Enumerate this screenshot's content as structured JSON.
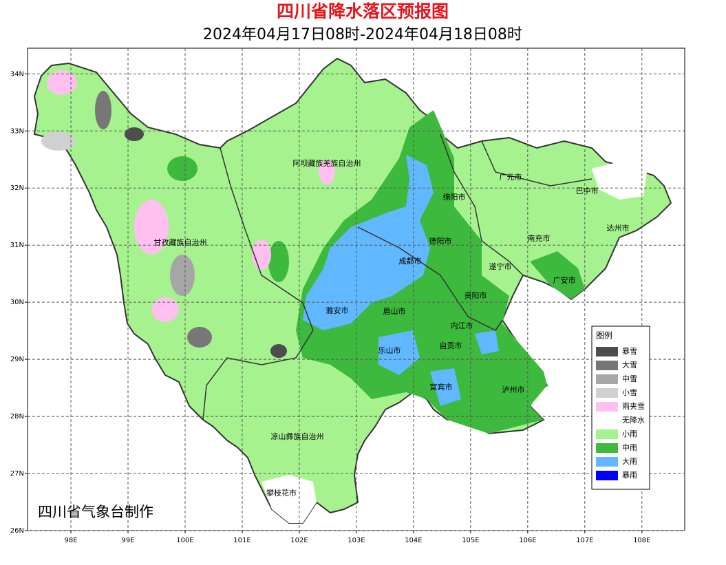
{
  "header": {
    "title": "四川省降水落区预报图",
    "subtitle": "2024年04月17日08时-2024年04月18日08时"
  },
  "map": {
    "xlim": [
      97.24,
      108.75
    ],
    "ylim": [
      26,
      34.45
    ],
    "xticks": [
      {
        "value": 98,
        "label": "98E"
      },
      {
        "value": 99,
        "label": "99E"
      },
      {
        "value": 100,
        "label": "100E"
      },
      {
        "value": 101,
        "label": "101E"
      },
      {
        "value": 102,
        "label": "102E"
      },
      {
        "value": 103,
        "label": "103E"
      },
      {
        "value": 104,
        "label": "104E"
      },
      {
        "value": 105,
        "label": "105E"
      },
      {
        "value": 106,
        "label": "106E"
      },
      {
        "value": 107,
        "label": "107E"
      },
      {
        "value": 108,
        "label": "108E"
      }
    ],
    "yticks": [
      {
        "value": 26,
        "label": "26N"
      },
      {
        "value": 27,
        "label": "27N"
      },
      {
        "value": 28,
        "label": "28N"
      },
      {
        "value": 29,
        "label": "29N"
      },
      {
        "value": 30,
        "label": "30N"
      },
      {
        "value": 31,
        "label": "31N"
      },
      {
        "value": 32,
        "label": "32N"
      },
      {
        "value": 33,
        "label": "33N"
      },
      {
        "value": 34,
        "label": "34N"
      }
    ],
    "grid": true,
    "labels": [
      "阿坝藏族羌族自治州",
      "广元市",
      "巴中市",
      "绵阳市",
      "甘孜藏族自治州",
      "德阳市",
      "南充市",
      "达州市",
      "成都市",
      "遂宁市",
      "广安市",
      "资阳市",
      "雅安市",
      "眉山市",
      "内江市",
      "自贡市",
      "乐山市",
      "宜宾市",
      "泸州市",
      "凉山彝族自治州",
      "攀枝花市"
    ],
    "credit": "四川省气象台制作"
  },
  "legend": {
    "title": "图例",
    "items": [
      {
        "name": "暴雪",
        "color": "#4d4d4d"
      },
      {
        "name": "大雪",
        "color": "#777777"
      },
      {
        "name": "中雪",
        "color": "#a6a6a6"
      },
      {
        "name": "小雪",
        "color": "#d0d0d0"
      },
      {
        "name": "雨夹雪",
        "color": "#ffc0f0"
      },
      {
        "name": "无降水",
        "color": "#ffffff"
      },
      {
        "name": "小雨",
        "color": "#a6f28f"
      },
      {
        "name": "中雨",
        "color": "#3dba3d"
      },
      {
        "name": "大雨",
        "color": "#61b8ff"
      },
      {
        "name": "暴雨",
        "color": "#0000fe"
      }
    ]
  }
}
